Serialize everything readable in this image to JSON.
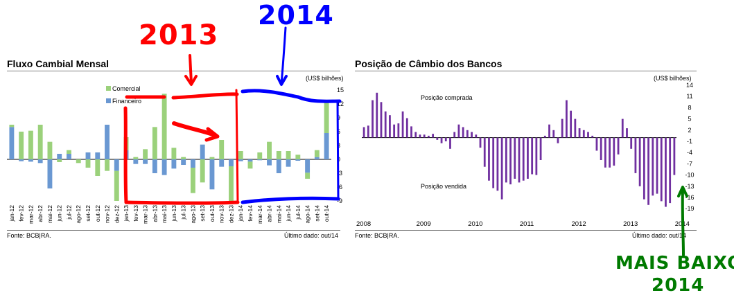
{
  "chart_data": [
    {
      "type": "bar",
      "stacked": true,
      "title": "Fluxo Cambial Mensal",
      "unit_label": "(US$ bilhões)",
      "ylim": [
        -9,
        15
      ],
      "yticks": [
        15,
        12,
        9,
        6,
        3,
        0,
        -3,
        -6,
        -9
      ],
      "categories": [
        "jan-12",
        "fev-12",
        "mar-12",
        "abr-12",
        "mai-12",
        "jun-12",
        "jul-12",
        "ago-12",
        "set-12",
        "out-12",
        "nov-12",
        "dez-12",
        "jan-13",
        "fev-13",
        "mar-13",
        "abr-13",
        "mai-13",
        "jun-13",
        "jul-13",
        "ago-13",
        "set-13",
        "out-13",
        "nov-13",
        "dez-13",
        "jan-14",
        "fev-14",
        "mar-14",
        "abr-14",
        "mai-14",
        "jun-14",
        "jul-14",
        "ago-14",
        "set-14",
        "out-14"
      ],
      "tick_labels": [
        "jan-12",
        "fev-12",
        "mar-12",
        "abr-12",
        "mai-12",
        "jun-12",
        "jul-12",
        "ago-12",
        "set-12",
        "out-12",
        "nov-12",
        "dez-12",
        "jan-13",
        "fev-13",
        "mar-13",
        "abr-13",
        "mai-13",
        "jun-13",
        "jul-13",
        "ago-13",
        "set-13",
        "out-13",
        "nov-13",
        "dez-13",
        "jan-14",
        "fev-14",
        "mar-14",
        "abr-14",
        "mai-14",
        "jun-14",
        "jul-14",
        "ago-14",
        "set-14",
        "out-14"
      ],
      "legend": [
        "Comercial",
        "Financeiro"
      ],
      "series": [
        {
          "name": "Comercial",
          "color": "#9bd17b",
          "values": [
            0.5,
            6.0,
            6.2,
            7.5,
            3.8,
            -0.6,
            0.8,
            -0.8,
            -1.8,
            -3.6,
            -2.5,
            -6.5,
            2.8,
            0.5,
            2.2,
            7.0,
            14.2,
            2.5,
            0.5,
            -5.5,
            -5.0,
            0.5,
            4.2,
            -8.2,
            1.8,
            -1.5,
            1.5,
            3.8,
            1.8,
            1.8,
            1.0,
            -1.3,
            1.5,
            7.0
          ]
        },
        {
          "name": "Financeiro",
          "color": "#6a98d2",
          "values": [
            7.0,
            -0.4,
            -0.5,
            -0.8,
            -6.3,
            1.2,
            1.2,
            0.0,
            1.5,
            1.5,
            7.5,
            -2.5,
            2.0,
            -1.0,
            -1.0,
            -3.0,
            -3.4,
            -2.0,
            -1.2,
            -1.8,
            3.2,
            -6.5,
            -1.6,
            -1.5,
            -0.4,
            -0.5,
            -0.2,
            -1.3,
            -3.0,
            -1.6,
            -0.3,
            -2.9,
            0.5,
            5.7
          ]
        }
      ],
      "source": "Fonte: BCB|RA.",
      "last_data": "Último dado: out/14"
    },
    {
      "type": "bar",
      "title": "Posição de Câmbio dos Bancos",
      "unit_label": "(US$ bilhões)",
      "ylim": [
        -21,
        14
      ],
      "yticks": [
        14,
        11,
        8,
        5,
        2,
        -1,
        -4,
        -7,
        -10,
        -13,
        -16,
        -19
      ],
      "ytick_labels": [
        "14",
        "11",
        "8",
        "5",
        "2",
        "-1",
        "-4",
        "-7",
        "-10",
        "-13",
        "-16",
        "-19"
      ],
      "x_labels": [
        "2008",
        "2009",
        "2010",
        "2011",
        "2012",
        "2013",
        "2014"
      ],
      "annotations": [
        "Posição comprada",
        "Posição vendida"
      ],
      "series": [
        {
          "name": "",
          "color": "#7030a0",
          "values": [
            2.8,
            3.2,
            10.0,
            12.0,
            9.5,
            7.0,
            6.0,
            3.5,
            3.8,
            7.0,
            5.2,
            3.0,
            1.5,
            0.8,
            0.8,
            0.5,
            1.0,
            -0.6,
            -1.5,
            -1.0,
            -3.0,
            1.5,
            3.5,
            2.8,
            2.0,
            1.5,
            0.8,
            -2.7,
            -7.8,
            -11.5,
            -13.5,
            -14.2,
            -16.5,
            -12.0,
            -12.5,
            -11.0,
            -12.0,
            -11.5,
            -11.0,
            -9.8,
            -10.0,
            -6.0,
            0.5,
            3.5,
            2.0,
            -1.5,
            5.0,
            10.0,
            7.2,
            5.0,
            2.5,
            2.0,
            1.5,
            0.5,
            -3.5,
            -6.0,
            -8.0,
            -8.0,
            -7.5,
            -4.5,
            5.0,
            2.5,
            -3.0,
            -9.5,
            -13.0,
            -16.5,
            -18.0,
            -15.5,
            -15.0,
            -17.0,
            -18.5,
            -17.5,
            -10.0
          ]
        }
      ],
      "source": "Fonte: BCB|RA.",
      "last_data": "Último dado: out/14"
    }
  ],
  "overlays": {
    "label_2013": "2013",
    "label_2014": "2014",
    "bottom_note_line1": "MAIS BAIXO",
    "bottom_note_line2": "2014",
    "colors": {
      "red": "#ff0000",
      "blue": "#0000ff",
      "green": "#007a00"
    }
  }
}
